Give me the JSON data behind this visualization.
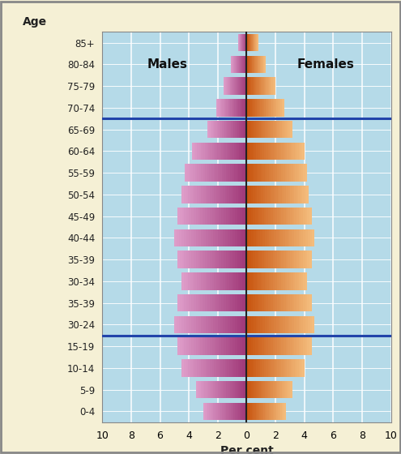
{
  "age_labels": [
    "85+",
    "80-84",
    "75-79",
    "70-74",
    "65-69",
    "60-64",
    "55-59",
    "50-54",
    "45-49",
    "40-44",
    "35-39",
    "30-34",
    "35-39",
    "30-24",
    "15-19",
    "10-14",
    "5-9",
    "0-4"
  ],
  "males": [
    0.6,
    1.1,
    1.6,
    2.1,
    2.7,
    3.8,
    4.3,
    4.5,
    4.8,
    5.0,
    4.8,
    4.5,
    4.8,
    5.0,
    4.8,
    4.5,
    3.5,
    3.0
  ],
  "females": [
    0.8,
    1.3,
    2.0,
    2.6,
    3.2,
    4.0,
    4.2,
    4.3,
    4.5,
    4.7,
    4.5,
    4.2,
    4.5,
    4.7,
    4.5,
    4.0,
    3.2,
    2.7
  ],
  "male_inner_color": "#a03878",
  "male_outer_color": "#e0a0cc",
  "female_inner_color": "#c85510",
  "female_outer_color": "#f5c080",
  "background_outer": "#f5f0d5",
  "background_inner": "#b5dae8",
  "grid_color": "#ffffff",
  "hline_color": "#2244aa",
  "xlabel": "Per cent",
  "males_label": "Males",
  "females_label": "Females",
  "xlim": 10,
  "bar_height": 0.8,
  "gradient_steps": 30
}
